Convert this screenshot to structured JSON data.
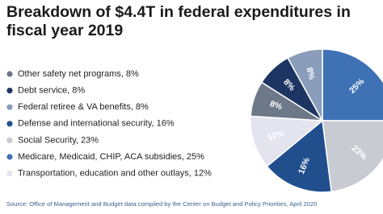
{
  "chart_data": {
    "type": "pie",
    "title": "Breakdown of $4.4T in federal expenditures in fiscal year 2019",
    "categories": [
      "Other safety net programs, 8%",
      "Debt service, 8%",
      "Federal retiree & VA benefits, 8%",
      "Defense and international security, 16%",
      "Social Security, 23%",
      "Medicare, Medicaid, CHIP, ACA subsidies, 25%",
      "Transportation, education and other outlays, 12%"
    ],
    "values": [
      8,
      8,
      8,
      16,
      23,
      25,
      12
    ],
    "value_labels": [
      "8%",
      "8%",
      "8%",
      "16%",
      "23%",
      "25%",
      "12%"
    ],
    "colors": [
      "#6d7888",
      "#1c3563",
      "#8a9dba",
      "#214f8e",
      "#c8ccd2",
      "#3e72b5",
      "#e3e4f0"
    ],
    "source": "Source: Office of Management and Budget data compiled by the Center on Budget and Policy Priorities, April 2020"
  }
}
